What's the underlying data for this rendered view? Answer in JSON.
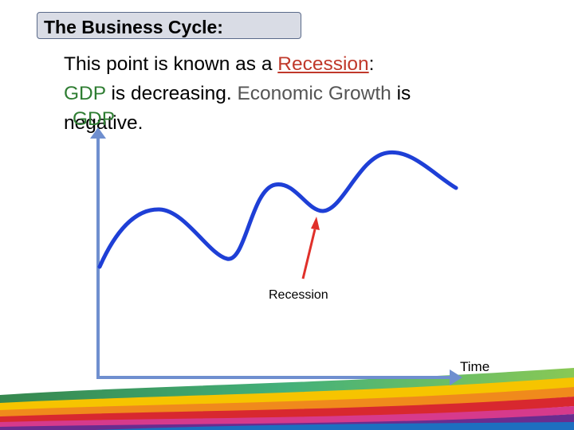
{
  "title": "The Business Cycle:",
  "text": {
    "line1_a": "This point is known as a ",
    "recession_word": "Recession",
    "line1_b": ":",
    "gdp_word": "GDP",
    "line2_a": " is decreasing. ",
    "growth_word": "Economic Growth",
    "line2_b": " is",
    "line3": "negative.",
    "y_axis_label": "GDP"
  },
  "diagram": {
    "annotation_label": "Recession",
    "x_axis_label": "Time"
  },
  "colors": {
    "curve": "#1e3fd6",
    "axes": "#6f8fcf",
    "arrow": "#e0302a",
    "recession_text": "#c0392b",
    "gdp_text": "#2e7d32"
  }
}
